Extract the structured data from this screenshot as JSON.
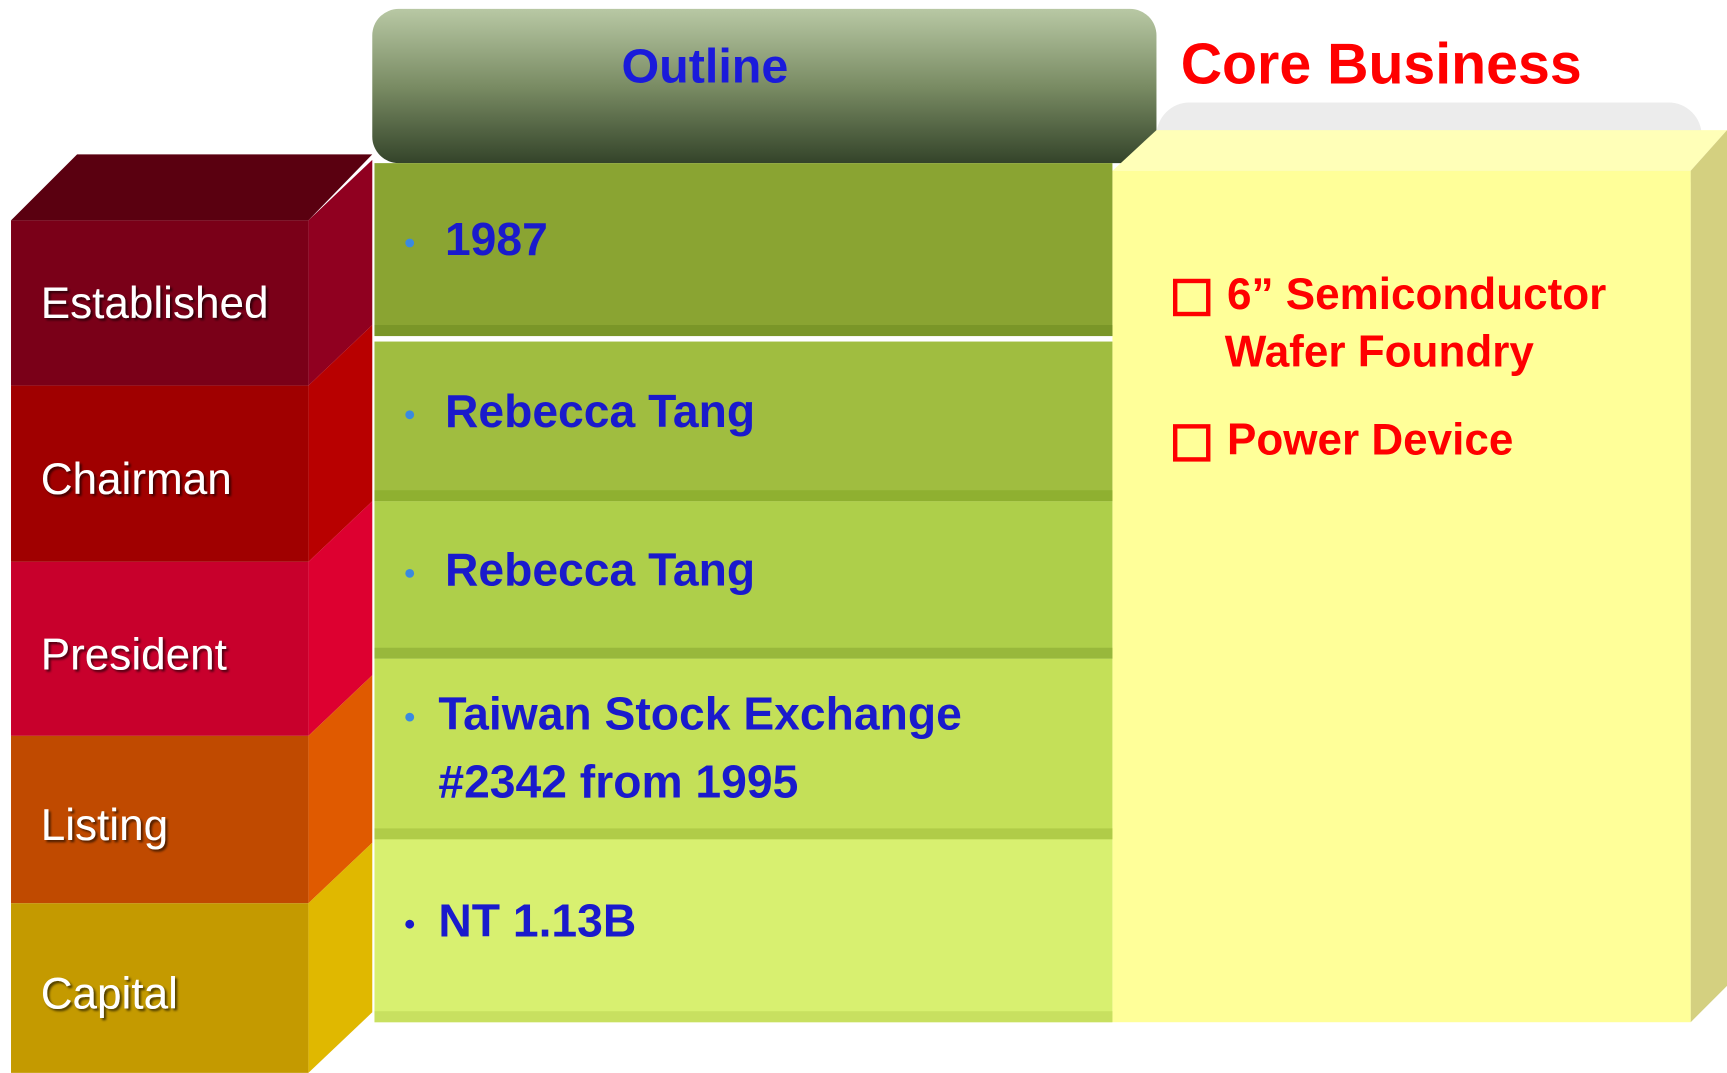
{
  "header": {
    "outline_title": "Outline",
    "core_title": "Core Business"
  },
  "rows": [
    {
      "label": "Established",
      "value": [
        "1987"
      ]
    },
    {
      "label": "Chairman",
      "value": [
        "Rebecca Tang"
      ]
    },
    {
      "label": "President",
      "value": [
        "Rebecca Tang"
      ]
    },
    {
      "label": "Listing",
      "value": [
        "Taiwan Stock Exchange",
        "#2342 from 1995"
      ]
    },
    {
      "label": "Capital",
      "value": [
        "NT 1.13B"
      ]
    }
  ],
  "core_business": [
    [
      "6” Semiconductor",
      "Wafer Foundry"
    ],
    [
      "Power Device"
    ]
  ]
}
